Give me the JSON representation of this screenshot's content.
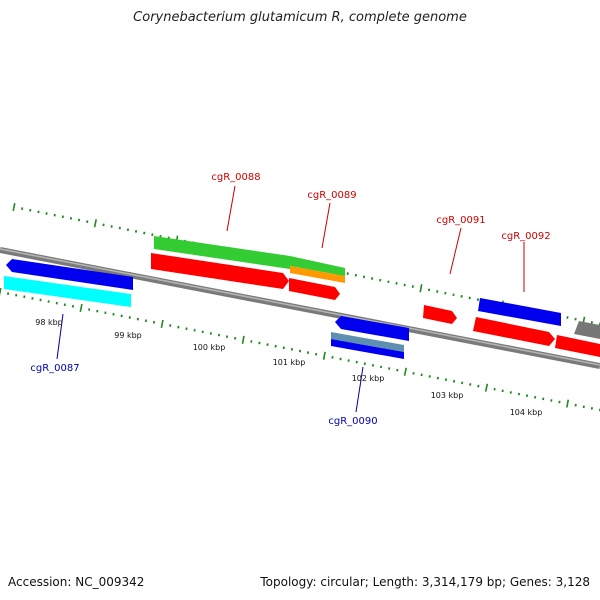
{
  "title": "Corynebacterium glutamicum R, complete genome",
  "footer": {
    "accession": "Accession: NC_009342",
    "stats": "Topology: circular; Length: 3,314,179 bp; Genes: 3,128"
  },
  "colors": {
    "backbone": "#7a7a7a",
    "tick": "#1f8a1f",
    "label_red": "#cc0000",
    "label_blue": "#0000aa",
    "blue": "#0000ee",
    "cyan": "#00ffff",
    "green": "#33cc33",
    "red": "#ff0000",
    "orange": "#ff9900",
    "steel": "#5f8fb0",
    "gray": "#777777"
  },
  "axis_labels": [
    {
      "text": "98 kbp",
      "kb": 98
    },
    {
      "text": "99 kbp",
      "kb": 99
    },
    {
      "text": "100 kbp",
      "kb": 100
    },
    {
      "text": "101 kbp",
      "kb": 101
    },
    {
      "text": "102 kbp",
      "kb": 102
    },
    {
      "text": "103 kbp",
      "kb": 103
    },
    {
      "text": "104 kbp",
      "kb": 104
    }
  ],
  "gene_labels": [
    {
      "text": "cgR_0087",
      "color": "label_blue"
    },
    {
      "text": "cgR_0088",
      "color": "label_red"
    },
    {
      "text": "cgR_0089",
      "color": "label_red"
    },
    {
      "text": "cgR_0090",
      "color": "label_blue"
    },
    {
      "text": "cgR_0091",
      "color": "label_red"
    },
    {
      "text": "cgR_0092",
      "color": "label_red"
    }
  ]
}
